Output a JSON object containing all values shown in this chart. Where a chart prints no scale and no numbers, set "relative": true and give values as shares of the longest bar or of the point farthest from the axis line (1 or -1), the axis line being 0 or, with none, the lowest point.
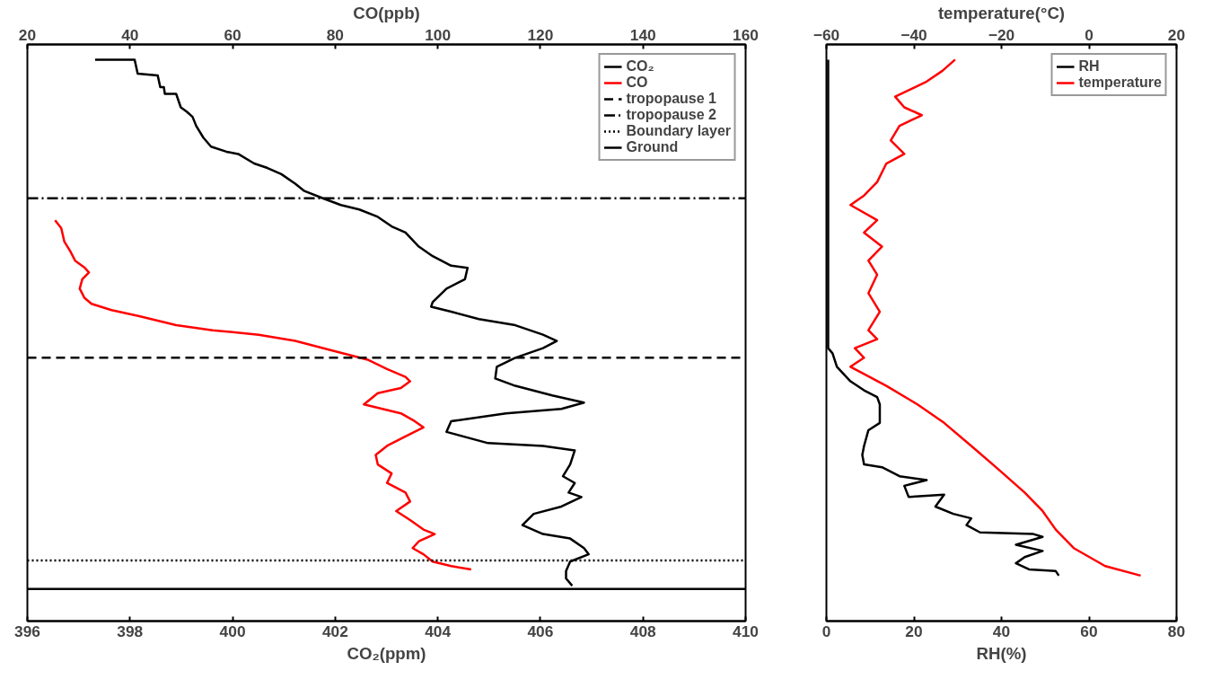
{
  "chart_data": [
    {
      "type": "line",
      "xlabel": "CO₂(ppm)",
      "x2label": "CO(ppb)",
      "xlim": [
        396,
        410
      ],
      "xticks": [
        396,
        398,
        400,
        402,
        404,
        406,
        408,
        410
      ],
      "x2lim": [
        20,
        160
      ],
      "x2ticks": [
        20,
        40,
        60,
        80,
        100,
        120,
        140,
        160
      ],
      "relative": true,
      "tick_labels": "x",
      "grid": false,
      "legend": "top right",
      "line_style": "solid",
      "marker": "none",
      "series": [
        {
          "name": "CO₂",
          "color": "#000000",
          "x": [
            397.32,
            398.09,
            398.15,
            398.54,
            398.59,
            398.66,
            398.68,
            398.9,
            398.99,
            399.11,
            399.22,
            399.29,
            399.43,
            399.58,
            399.88,
            400.11,
            400.42,
            400.68,
            400.95,
            401.22,
            401.4,
            401.76,
            402.11,
            402.47,
            402.83,
            403.1,
            403.37,
            403.63,
            403.9,
            404.26,
            404.58,
            404.53,
            404.17,
            403.9,
            403.87,
            404.26,
            404.8,
            405.51,
            406.05,
            406.32,
            406.05,
            405.51,
            405.15,
            405.12,
            405.51,
            406.23,
            406.85,
            406.41,
            405.33,
            404.26,
            404.17,
            404.98,
            406.05,
            406.67,
            406.58,
            406.44,
            406.67,
            406.55,
            406.8,
            406.41,
            405.87,
            405.65,
            406.05,
            406.58,
            406.85,
            406.94,
            406.58,
            406.5,
            406.5,
            406.62
          ],
          "values": [
            1.0,
            1.0,
            0.975,
            0.972,
            0.951,
            0.951,
            0.939,
            0.939,
            0.915,
            0.907,
            0.898,
            0.882,
            0.861,
            0.845,
            0.836,
            0.832,
            0.815,
            0.807,
            0.796,
            0.779,
            0.766,
            0.753,
            0.741,
            0.733,
            0.72,
            0.703,
            0.692,
            0.667,
            0.65,
            0.633,
            0.629,
            0.609,
            0.592,
            0.568,
            0.56,
            0.551,
            0.538,
            0.527,
            0.51,
            0.499,
            0.486,
            0.469,
            0.453,
            0.432,
            0.419,
            0.402,
            0.389,
            0.378,
            0.37,
            0.356,
            0.337,
            0.317,
            0.312,
            0.304,
            0.279,
            0.258,
            0.246,
            0.229,
            0.221,
            0.204,
            0.191,
            0.171,
            0.155,
            0.147,
            0.13,
            0.119,
            0.106,
            0.089,
            0.076,
            0.063
          ]
        },
        {
          "name": "CO",
          "color": "#ff0000",
          "axis": "x2",
          "x": [
            25.4,
            26.6,
            27.2,
            28.4,
            29.3,
            31.1,
            32.0,
            30.7,
            30.2,
            31.1,
            32.5,
            36.4,
            41.8,
            49.0,
            56.1,
            65.1,
            72.2,
            79.4,
            86.5,
            90.1,
            93.7,
            94.6,
            92.8,
            88.3,
            85.6,
            89.2,
            92.8,
            95.5,
            97.2,
            93.7,
            90.1,
            87.9,
            88.3,
            91.0,
            90.1,
            93.7,
            94.6,
            91.9,
            94.6,
            97.2,
            99.4,
            96.3,
            95.1,
            97.2,
            99.0,
            102.6,
            106.5
          ],
          "values": [
            0.714,
            0.7,
            0.676,
            0.658,
            0.642,
            0.63,
            0.621,
            0.609,
            0.592,
            0.576,
            0.565,
            0.554,
            0.543,
            0.527,
            0.518,
            0.51,
            0.499,
            0.482,
            0.465,
            0.449,
            0.435,
            0.427,
            0.415,
            0.406,
            0.386,
            0.378,
            0.37,
            0.356,
            0.345,
            0.329,
            0.312,
            0.296,
            0.279,
            0.263,
            0.246,
            0.229,
            0.213,
            0.196,
            0.18,
            0.163,
            0.155,
            0.142,
            0.13,
            0.119,
            0.106,
            0.098,
            0.092
          ]
        }
      ],
      "ref_lines": [
        {
          "axis": "y",
          "value": 0.469,
          "label": "tropopause 1",
          "line_style": "dashed",
          "color": "#000000"
        },
        {
          "axis": "y",
          "value": 0.753,
          "label": "tropopause 2",
          "line_style": "dashdot",
          "color": "#000000"
        },
        {
          "axis": "y",
          "value": 0.108,
          "label": "Boundary layer",
          "line_style": "dotted",
          "color": "#000000"
        },
        {
          "axis": "y",
          "value": 0.057,
          "label": "Ground",
          "line_style": "solid",
          "color": "#000000"
        }
      ]
    },
    {
      "type": "line",
      "xlabel": "RH(%)",
      "x2label": "temperature(°C)",
      "xlim": [
        0,
        80
      ],
      "xticks": [
        0,
        20,
        40,
        60,
        80
      ],
      "x2lim": [
        -60,
        20
      ],
      "x2ticks": [
        -60,
        -40,
        -20,
        0,
        20
      ],
      "relative": true,
      "tick_labels": "x",
      "grid": false,
      "legend": "top right",
      "line_style": "solid",
      "marker": "none",
      "series": [
        {
          "name": "RH",
          "color": "#000000",
          "x": [
            0.4,
            0.4,
            1.4,
            2.4,
            5.5,
            8.6,
            11.6,
            12.2,
            12.2,
            9.6,
            8.6,
            8.2,
            8.6,
            12.7,
            16.7,
            22.9,
            17.8,
            18.8,
            26.9,
            24.9,
            29.0,
            33.1,
            32.0,
            35.1,
            47.3,
            49.4,
            43.3,
            49.4,
            45.3,
            43.3,
            46.3,
            52.4,
            53.1
          ],
          "values": [
            1.0,
            0.486,
            0.477,
            0.453,
            0.427,
            0.411,
            0.399,
            0.386,
            0.353,
            0.34,
            0.312,
            0.296,
            0.279,
            0.274,
            0.258,
            0.251,
            0.241,
            0.221,
            0.225,
            0.204,
            0.191,
            0.183,
            0.171,
            0.158,
            0.155,
            0.15,
            0.136,
            0.125,
            0.114,
            0.103,
            0.092,
            0.089,
            0.081
          ]
        },
        {
          "name": "temperature",
          "color": "#ff0000",
          "axis": "x2",
          "x": [
            -30.6,
            -33.5,
            -37.1,
            -44.3,
            -42.2,
            -38.2,
            -43.3,
            -45.3,
            -42.2,
            -46.3,
            -48.4,
            -51.4,
            -54.5,
            -48.4,
            -51.4,
            -47.3,
            -50.4,
            -48.4,
            -50.4,
            -47.8,
            -50.4,
            -48.4,
            -53.5,
            -51.4,
            -54.5,
            -46.3,
            -39.2,
            -33.1,
            -26.9,
            -20.8,
            -14.7,
            -10.6,
            -7.6,
            -3.5,
            3.7,
            11.8
          ],
          "values": [
            1.0,
            0.98,
            0.961,
            0.934,
            0.915,
            0.901,
            0.882,
            0.856,
            0.832,
            0.815,
            0.782,
            0.758,
            0.741,
            0.714,
            0.692,
            0.667,
            0.642,
            0.617,
            0.584,
            0.551,
            0.518,
            0.502,
            0.486,
            0.469,
            0.453,
            0.419,
            0.386,
            0.353,
            0.312,
            0.271,
            0.229,
            0.196,
            0.163,
            0.13,
            0.098,
            0.081
          ]
        }
      ]
    }
  ]
}
